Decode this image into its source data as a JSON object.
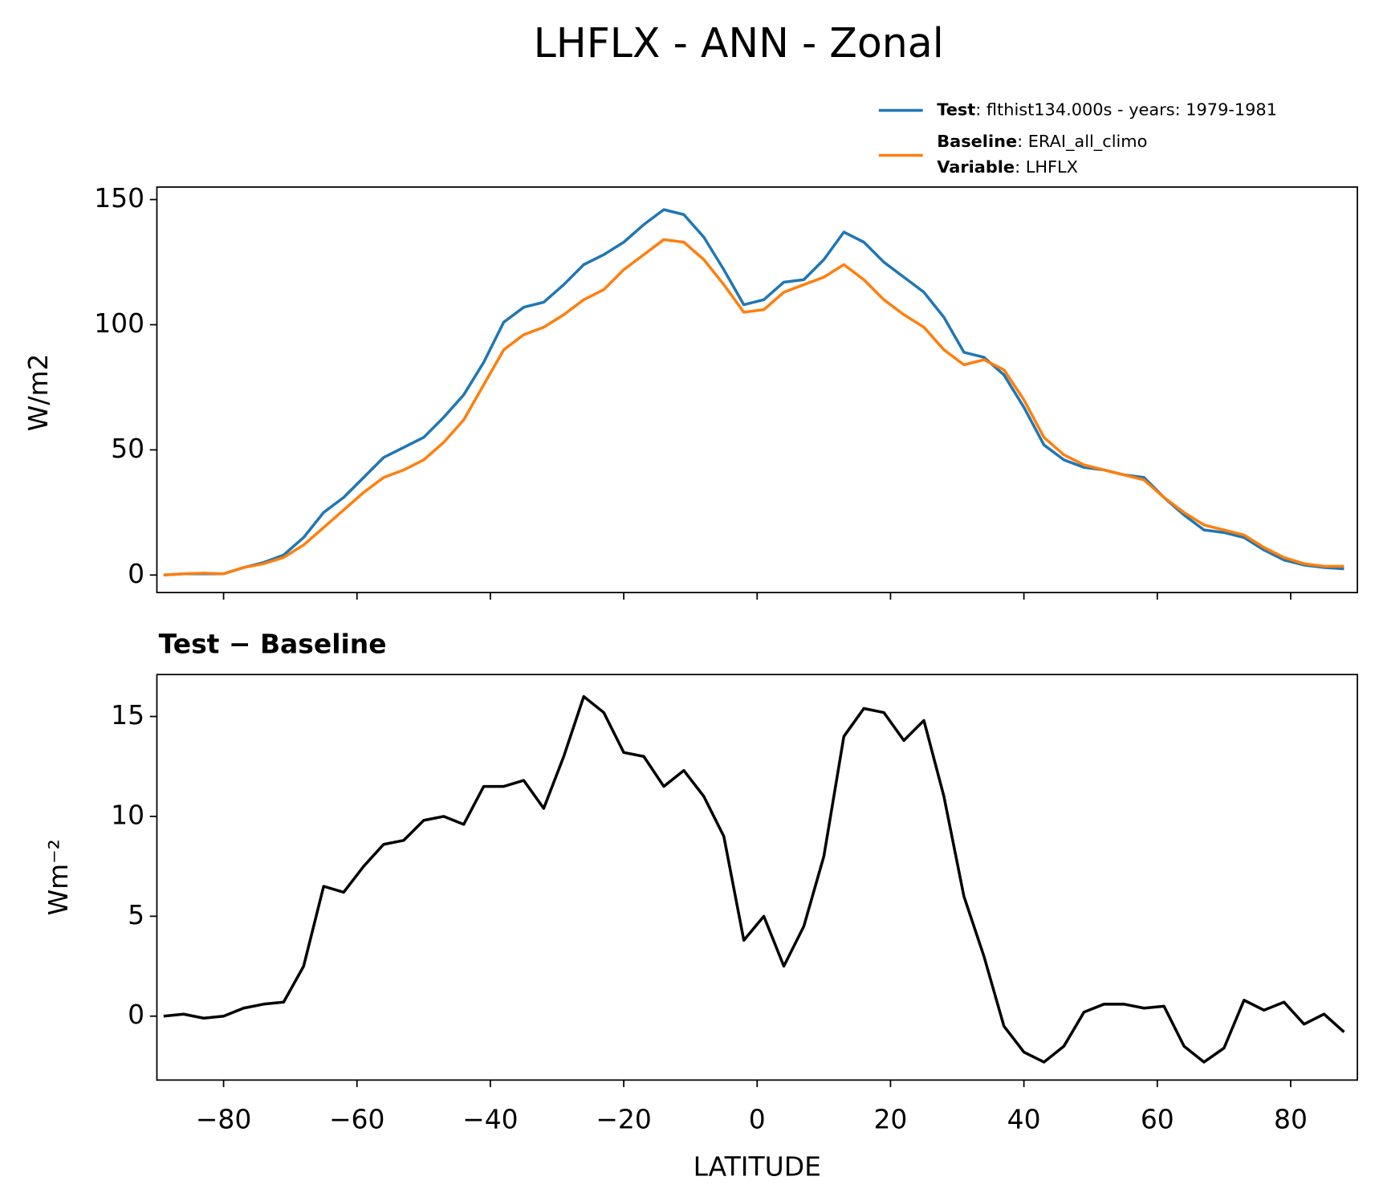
{
  "chart_data": [
    {
      "type": "line",
      "title": "LHFLX - ANN - Zonal",
      "ylabel": "W/m2",
      "x": [
        -89,
        -86,
        -83,
        -80,
        -77,
        -74,
        -71,
        -68,
        -65,
        -62,
        -59,
        -56,
        -53,
        -50,
        -47,
        -44,
        -41,
        -38,
        -35,
        -32,
        -29,
        -26,
        -23,
        -20,
        -17,
        -14,
        -11,
        -8,
        -5,
        -2,
        1,
        4,
        7,
        10,
        13,
        16,
        19,
        22,
        25,
        28,
        31,
        34,
        37,
        40,
        43,
        46,
        49,
        52,
        55,
        58,
        61,
        64,
        67,
        70,
        73,
        76,
        79,
        82,
        85,
        88
      ],
      "series": [
        {
          "name": "Test",
          "detail": ": flthist134.000s - years: 1979-1981",
          "color": "#1f77b4",
          "values": [
            0,
            0.5,
            0.5,
            0.5,
            3,
            5,
            8,
            15,
            25,
            31,
            39,
            47,
            51,
            55,
            63,
            72,
            85,
            101,
            107,
            109,
            116,
            124,
            128,
            133,
            140,
            146,
            144,
            135,
            122,
            108,
            110,
            117,
            118,
            126,
            137,
            133,
            125,
            119,
            113,
            103,
            89,
            87,
            80,
            67,
            52,
            46,
            43,
            42,
            40,
            39,
            31,
            24,
            18,
            17,
            15,
            10,
            6,
            4,
            3,
            2.5
          ]
        },
        {
          "name": "Baseline",
          "detail": ": ERAI_all_climo",
          "color": "#ff7f0e",
          "values": [
            0,
            0.5,
            0.8,
            0.5,
            3,
            4.5,
            7,
            12,
            19,
            26,
            33,
            39,
            42,
            46,
            53,
            62,
            76,
            90,
            96,
            99,
            104,
            110,
            114,
            122,
            128,
            134,
            133,
            126,
            116,
            105,
            106,
            113,
            116,
            119,
            124,
            118,
            110,
            104,
            99,
            90,
            84,
            86,
            82,
            70,
            55,
            48,
            44,
            42,
            40,
            38,
            31,
            25,
            20,
            18,
            16,
            11,
            7,
            4.5,
            3.5,
            3.5
          ]
        }
      ],
      "legend_extra": {
        "name": "Variable",
        "detail": ": LHFLX"
      },
      "xlim": [
        -90,
        90
      ],
      "xticks": [
        {
          "value": -80,
          "label": "−80"
        },
        {
          "value": -60,
          "label": "−60"
        },
        {
          "value": -40,
          "label": "−40"
        },
        {
          "value": -20,
          "label": "−20"
        },
        0,
        20,
        40,
        60,
        80
      ],
      "ylim": [
        -7,
        155
      ],
      "yticks": [
        0,
        50,
        100,
        150
      ]
    },
    {
      "type": "line",
      "title": "Test − Baseline",
      "ylabel": "Wm⁻²",
      "xlabel": "LATITUDE",
      "x": [
        -89,
        -86,
        -83,
        -80,
        -77,
        -74,
        -71,
        -68,
        -65,
        -62,
        -59,
        -56,
        -53,
        -50,
        -47,
        -44,
        -41,
        -38,
        -35,
        -32,
        -29,
        -26,
        -23,
        -20,
        -17,
        -14,
        -11,
        -8,
        -5,
        -2,
        1,
        4,
        7,
        10,
        13,
        16,
        19,
        22,
        25,
        28,
        31,
        34,
        37,
        40,
        43,
        46,
        49,
        52,
        55,
        58,
        61,
        64,
        67,
        70,
        73,
        76,
        79,
        82,
        85,
        88
      ],
      "color": "#000000",
      "values": [
        0,
        0.1,
        -0.1,
        0,
        0.4,
        0.6,
        0.7,
        2.5,
        6.5,
        6.2,
        7.5,
        8.6,
        8.8,
        9.8,
        10,
        9.6,
        11.5,
        11.5,
        11.8,
        10.4,
        13,
        16,
        15.2,
        13.2,
        13,
        11.5,
        12.3,
        11,
        9,
        3.8,
        5,
        2.5,
        4.5,
        8,
        14,
        15.4,
        15.2,
        13.8,
        14.8,
        11,
        6,
        3,
        -0.5,
        -1.8,
        -2.3,
        -1.5,
        0.2,
        0.6,
        0.6,
        0.4,
        0.5,
        -1.5,
        -2.3,
        -1.6,
        0.8,
        0.3,
        0.7,
        -0.4,
        0.1,
        -0.8
      ],
      "xlim": [
        -90,
        90
      ],
      "xticks": [
        {
          "value": -80,
          "label": "−80"
        },
        {
          "value": -60,
          "label": "−60"
        },
        {
          "value": -40,
          "label": "−40"
        },
        {
          "value": -20,
          "label": "−20"
        },
        0,
        20,
        40,
        60,
        80
      ],
      "ylim": [
        -3.2,
        17.1
      ],
      "yticks": [
        0,
        5,
        10,
        15
      ]
    }
  ]
}
